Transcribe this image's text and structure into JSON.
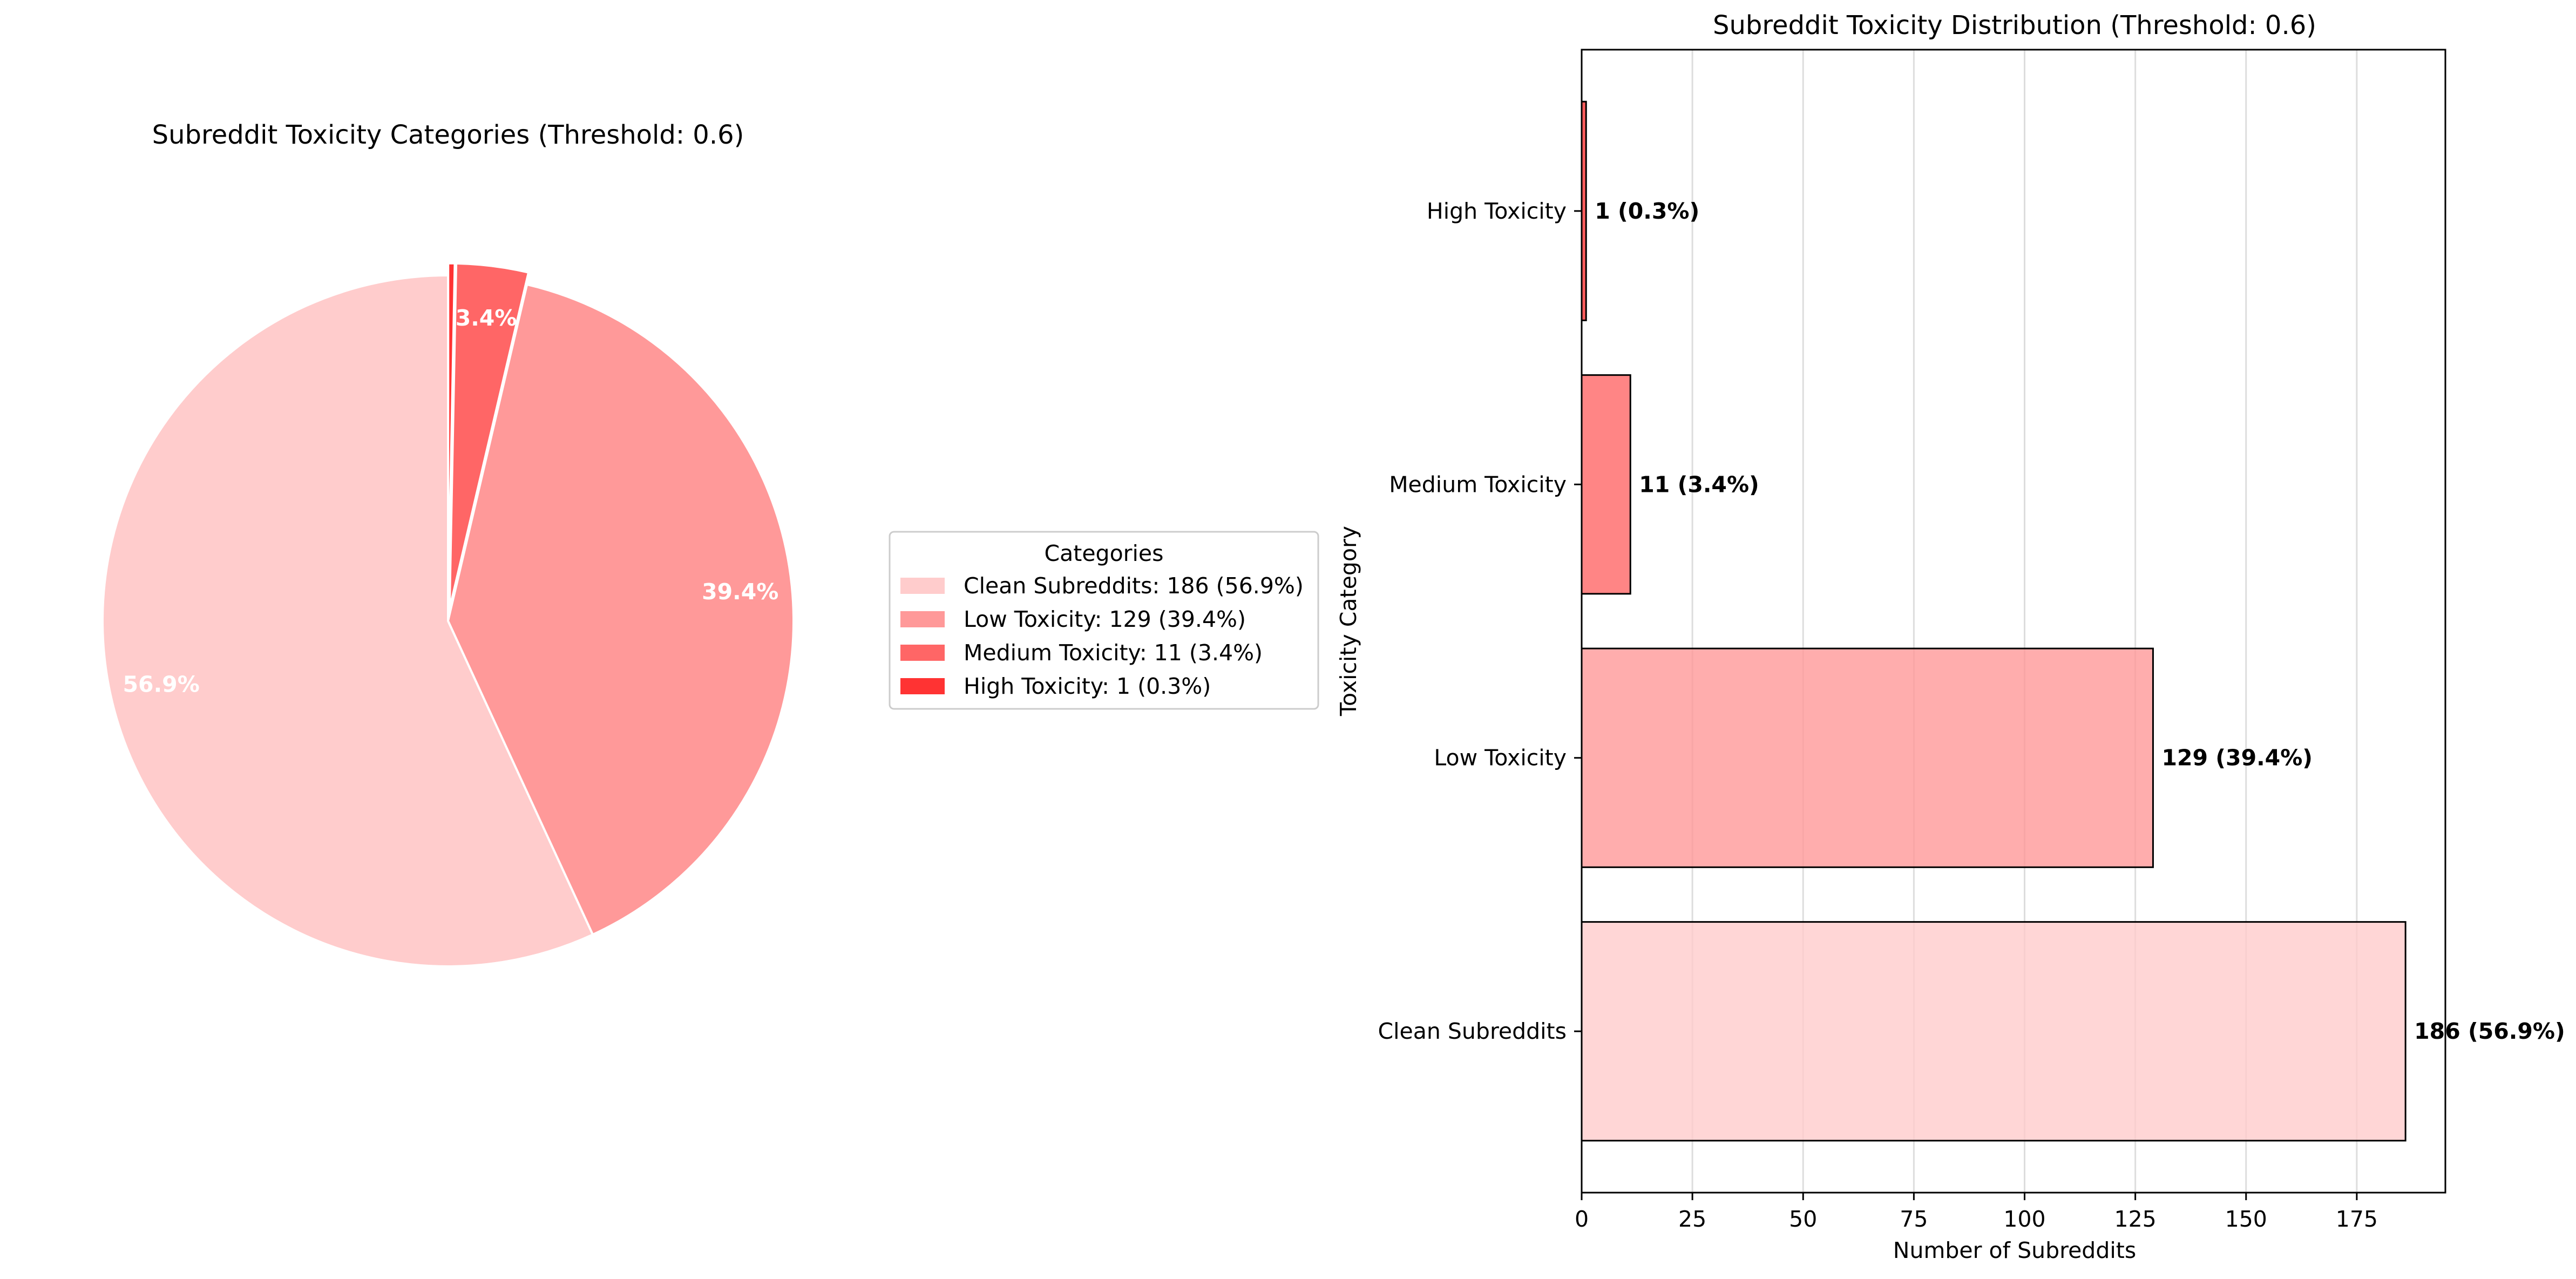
{
  "chart_data": [
    {
      "type": "pie",
      "title": "Subreddit Toxicity Categories (Threshold: 0.6)",
      "slices": [
        {
          "label": "Clean Subreddits",
          "value": 186,
          "percent_label": "56.9%",
          "color": "#ffcccc"
        },
        {
          "label": "Low Toxicity",
          "value": 129,
          "percent_label": "39.4%",
          "color": "#ff9999"
        },
        {
          "label": "Medium Toxicity",
          "value": 11,
          "percent_label": "3.4%",
          "color": "#ff6666"
        },
        {
          "label": "High Toxicity",
          "value": 1,
          "percent_label": "0.3%",
          "color": "#ff3333"
        }
      ],
      "legend": {
        "title": "Categories",
        "placement": "right",
        "entries": [
          "Clean Subreddits: 186 (56.9%)",
          "Low Toxicity: 129 (39.4%)",
          "Medium Toxicity: 11 (3.4%)",
          "High Toxicity: 1 (0.3%)"
        ]
      }
    },
    {
      "type": "bar",
      "orientation": "horizontal",
      "title": "Subreddit Toxicity Distribution (Threshold: 0.6)",
      "xlabel": "Number of Subreddits",
      "ylabel": "Toxicity Category",
      "categories": [
        "Clean Subreddits",
        "Low Toxicity",
        "Medium Toxicity",
        "High Toxicity"
      ],
      "values": [
        186,
        129,
        11,
        1
      ],
      "data_labels": [
        "186 (56.9%)",
        "129 (39.4%)",
        "11 (3.4%)",
        "1 (0.3%)"
      ],
      "colors": [
        "#ffcccc",
        "#ff9999",
        "#ff6666",
        "#ff3333"
      ],
      "xlim": [
        0,
        195
      ],
      "xticks": [
        0,
        25,
        50,
        75,
        100,
        125,
        150,
        175
      ],
      "grid": "vertical"
    }
  ]
}
